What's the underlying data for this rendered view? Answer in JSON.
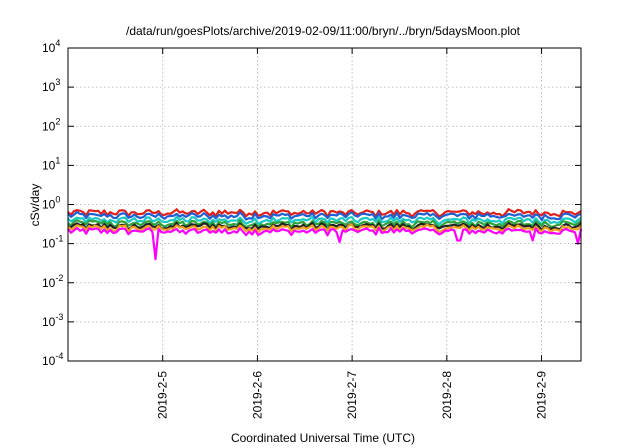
{
  "chart_data": {
    "type": "line",
    "title": "/data/run/goesPlots/archive/2019-02-09/11:00/bryn/../bryn/5daysMoon.plot",
    "xlabel": "Coordinated Universal Time (UTC)",
    "ylabel": "cSv/day",
    "y_scale": "log",
    "ylim": [
      0.0001,
      10000
    ],
    "y_ticks": [
      {
        "base": "10",
        "exp": "-4",
        "value": 0.0001
      },
      {
        "base": "10",
        "exp": "-3",
        "value": 0.001
      },
      {
        "base": "10",
        "exp": "-2",
        "value": 0.01
      },
      {
        "base": "10",
        "exp": "-1",
        "value": 0.1
      },
      {
        "base": "10",
        "exp": "0",
        "value": 1
      },
      {
        "base": "10",
        "exp": "1",
        "value": 10
      },
      {
        "base": "10",
        "exp": "2",
        "value": 100
      },
      {
        "base": "10",
        "exp": "3",
        "value": 1000
      },
      {
        "base": "10",
        "exp": "4",
        "value": 10000
      }
    ],
    "xlim": [
      "2019-02-04",
      "2019-02-09"
    ],
    "x_ticks": [
      "2019-2-5",
      "2019-2-6",
      "2019-2-7",
      "2019-2-8",
      "2019-2-9"
    ],
    "grid": true,
    "series": [
      {
        "color": "#e0201a",
        "level": 0.62,
        "dips": []
      },
      {
        "color": "#1f5fd6",
        "level": 0.52,
        "dips": []
      },
      {
        "color": "#19c9c4",
        "level": 0.4,
        "dips": []
      },
      {
        "color": "#2ea33a",
        "level": 0.33,
        "dips": []
      },
      {
        "color": "#222222",
        "level": 0.28,
        "dips": []
      },
      {
        "color": "#f0a020",
        "level": 0.25,
        "dips": []
      },
      {
        "color": "#ff00ff",
        "level": 0.21,
        "dips": [
          {
            "x": "2019-02-04T22:00",
            "value": 0.04
          },
          {
            "x": "2019-02-06T21:00",
            "value": 0.11
          },
          {
            "x": "2019-02-08T03:00",
            "value": 0.12
          },
          {
            "x": "2019-02-08T22:00",
            "value": 0.12
          },
          {
            "x": "2019-02-09T09:00",
            "value": 0.1
          }
        ]
      }
    ]
  }
}
